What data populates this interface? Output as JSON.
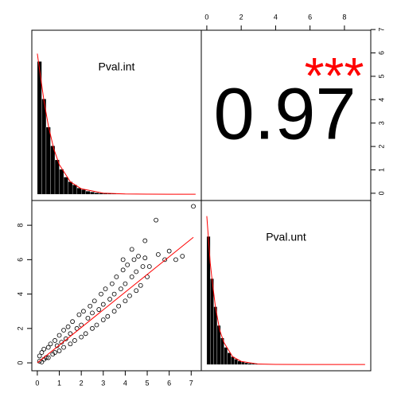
{
  "chart_data": [
    {
      "type": "histogram",
      "title": "Pval.int",
      "color": "#000000",
      "line_color": "#ff0000",
      "bins": [
        0,
        0.2,
        0.4,
        0.6,
        0.8,
        1,
        1.2,
        1.4,
        1.6,
        1.8,
        2,
        2.2,
        2.4,
        2.6,
        2.8,
        3,
        3.2,
        3.4,
        3.6,
        3.8,
        4,
        4.2,
        4.4,
        4.6,
        4.8,
        5,
        5.2,
        5.4,
        5.6,
        5.8,
        6,
        6.2,
        6.4,
        6.6,
        6.8,
        7,
        7.2
      ],
      "counts": [
        0.85,
        0.61,
        0.43,
        0.31,
        0.22,
        0.16,
        0.11,
        0.08,
        0.06,
        0.04,
        0.03,
        0.02,
        0.015,
        0.01,
        0.008,
        0.006,
        0.005,
        0.004,
        0.003,
        0.003,
        0.002,
        0.002,
        0.002,
        0.001,
        0.001,
        0.001,
        0.001,
        0.001,
        0.001,
        0,
        0.001,
        0,
        0.001,
        0,
        0,
        0.001
      ],
      "density": {
        "x": [
          0,
          0.1,
          0.2,
          0.3,
          0.5,
          0.75,
          1,
          1.5,
          2,
          3,
          4,
          5,
          6,
          7.2
        ],
        "y": [
          0.9,
          0.8,
          0.7,
          0.6,
          0.44,
          0.29,
          0.19,
          0.08,
          0.035,
          0.007,
          0.002,
          0.001,
          0,
          0
        ]
      },
      "xlim": [
        -0.25,
        7.46
      ],
      "ylim": [
        -0.04,
        1.05
      ]
    },
    {
      "type": "correlation",
      "value": 0.97,
      "stars": "***",
      "stars_color": "#ff0000",
      "ylim": [
        -0.31,
        6.97
      ],
      "yticks": [
        0,
        1,
        2,
        3,
        4,
        5,
        6,
        7
      ]
    },
    {
      "type": "scatter",
      "color": "#000000",
      "line_color": "#ff0000",
      "x": [
        0.1,
        0.1,
        0.2,
        0.2,
        0.3,
        0.3,
        0.4,
        0.5,
        0.5,
        0.6,
        0.7,
        0.8,
        0.8,
        0.9,
        1.0,
        1.0,
        1.1,
        1.2,
        1.2,
        1.3,
        1.4,
        1.5,
        1.5,
        1.6,
        1.7,
        1.8,
        1.9,
        2.0,
        2.0,
        2.1,
        2.2,
        2.3,
        2.4,
        2.5,
        2.5,
        2.6,
        2.7,
        2.8,
        2.9,
        3.0,
        3.0,
        3.1,
        3.2,
        3.3,
        3.4,
        3.5,
        3.5,
        3.6,
        3.7,
        3.8,
        3.9,
        4.0,
        4.0,
        4.1,
        4.2,
        4.3,
        4.4,
        4.5,
        4.5,
        4.6,
        4.7,
        4.8,
        4.9,
        5.0,
        5.1,
        5.4,
        5.5,
        5.8,
        6.0,
        6.3,
        6.6,
        7.1,
        4.9,
        4.3,
        3.9
      ],
      "y": [
        0.1,
        0.4,
        0.05,
        0.6,
        0.2,
        0.8,
        0.3,
        0.9,
        0.3,
        1.1,
        0.5,
        1.3,
        0.6,
        1.0,
        1.6,
        0.7,
        1.2,
        1.9,
        0.9,
        1.4,
        2.1,
        1.1,
        1.7,
        2.4,
        1.3,
        2.0,
        2.8,
        1.5,
        2.2,
        3.0,
        1.7,
        2.6,
        3.3,
        2.0,
        2.9,
        3.6,
        2.2,
        3.1,
        4.0,
        2.5,
        3.4,
        4.3,
        2.7,
        3.7,
        4.6,
        3.0,
        4.0,
        5.0,
        3.3,
        4.3,
        5.4,
        3.6,
        4.6,
        5.7,
        3.9,
        5.0,
        6.0,
        4.2,
        5.3,
        6.2,
        4.5,
        5.6,
        6.1,
        5.0,
        5.6,
        8.3,
        6.3,
        6.0,
        6.5,
        6.0,
        6.2,
        9.1,
        7.1,
        6.6,
        6.0
      ],
      "fit": {
        "x": [
          0,
          7.1
        ],
        "y": [
          0,
          7.3
        ]
      },
      "xlim": [
        -0.25,
        7.46
      ],
      "ylim": [
        -0.46,
        9.44
      ],
      "xticks": [
        0,
        1,
        2,
        3,
        4,
        5,
        6,
        7
      ],
      "yticks": [
        0,
        2,
        4,
        6,
        8
      ]
    },
    {
      "type": "histogram",
      "title": "Pval.unt",
      "color": "#000000",
      "line_color": "#ff0000",
      "bins": [
        0,
        0.2,
        0.4,
        0.6,
        0.8,
        1,
        1.2,
        1.4,
        1.6,
        1.8,
        2,
        2.2,
        2.4,
        2.6,
        2.8,
        3,
        3.2,
        3.4,
        3.6,
        3.8,
        4,
        4.2,
        4.4,
        4.6,
        4.8,
        5,
        5.2,
        5.4,
        5.6,
        5.8,
        6,
        6.2,
        6.4,
        6.6,
        6.8,
        7,
        7.2,
        7.4,
        7.6,
        7.8,
        8,
        8.2,
        8.4,
        8.6,
        8.8,
        9,
        9.2
      ],
      "counts": [
        0.82,
        0.55,
        0.37,
        0.25,
        0.17,
        0.11,
        0.075,
        0.05,
        0.034,
        0.023,
        0.016,
        0.011,
        0.008,
        0.006,
        0.005,
        0.004,
        0.003,
        0.003,
        0.002,
        0.002,
        0.002,
        0.001,
        0.001,
        0.001,
        0.001,
        0.001,
        0.001,
        0.001,
        0.001,
        0.001,
        0.001,
        0,
        0.001,
        0.001,
        0,
        0.001,
        0,
        0,
        0.001,
        0,
        0,
        0.001,
        0,
        0,
        0,
        0.001
      ],
      "density": {
        "x": [
          0,
          0.1,
          0.2,
          0.3,
          0.5,
          0.75,
          1,
          1.5,
          2,
          3,
          4,
          6,
          9.2
        ],
        "y": [
          0.95,
          0.8,
          0.65,
          0.55,
          0.37,
          0.22,
          0.14,
          0.05,
          0.02,
          0.003,
          0.001,
          0,
          0
        ]
      },
      "xlim": [
        -0.32,
        9.53
      ],
      "ylim": [
        -0.04,
        1.05
      ],
      "xticks": [
        0,
        2,
        4,
        6,
        8
      ]
    }
  ]
}
